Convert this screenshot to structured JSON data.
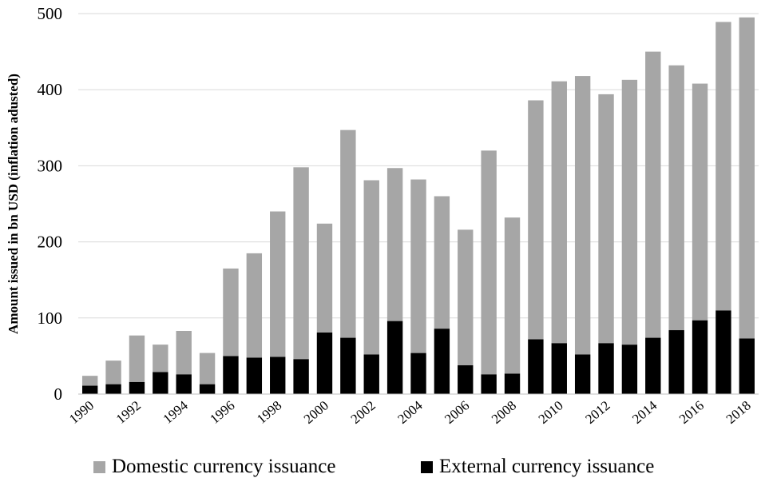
{
  "chart_data": {
    "type": "bar",
    "stacked": true,
    "title": "",
    "xlabel": "",
    "ylabel": "Amount issued in bn USD (inflation adusted)",
    "ylim": [
      0,
      500
    ],
    "y_ticks": [
      0,
      100,
      200,
      300,
      400,
      500
    ],
    "grid": "horizontal",
    "legend_position": "bottom",
    "categories": [
      "1990",
      "1991",
      "1992",
      "1993",
      "1994",
      "1995",
      "1996",
      "1997",
      "1998",
      "1999",
      "2000",
      "2001",
      "2002",
      "2003",
      "2004",
      "2005",
      "2006",
      "2007",
      "2008",
      "2009",
      "2010",
      "2011",
      "2012",
      "2013",
      "2014",
      "2015",
      "2016",
      "2017",
      "2018"
    ],
    "x_tick_labels": [
      "1990",
      "1992",
      "1994",
      "1996",
      "1998",
      "2000",
      "2002",
      "2004",
      "2006",
      "2008",
      "2010",
      "2012",
      "2014",
      "2016",
      "2018"
    ],
    "series": [
      {
        "name": "External currency issuance",
        "color": "#000000",
        "values": [
          11,
          13,
          16,
          29,
          26,
          13,
          50,
          48,
          49,
          46,
          81,
          74,
          52,
          96,
          54,
          86,
          38,
          26,
          27,
          72,
          67,
          52,
          67,
          65,
          74,
          84,
          97,
          110,
          73
        ]
      },
      {
        "name": "Domestic currency issuance",
        "color": "#a6a6a6",
        "values": [
          13,
          31,
          61,
          36,
          57,
          41,
          115,
          137,
          191,
          252,
          143,
          273,
          229,
          201,
          228,
          174,
          178,
          294,
          205,
          314,
          344,
          366,
          327,
          348,
          376,
          348,
          311,
          379,
          422
        ]
      }
    ]
  }
}
